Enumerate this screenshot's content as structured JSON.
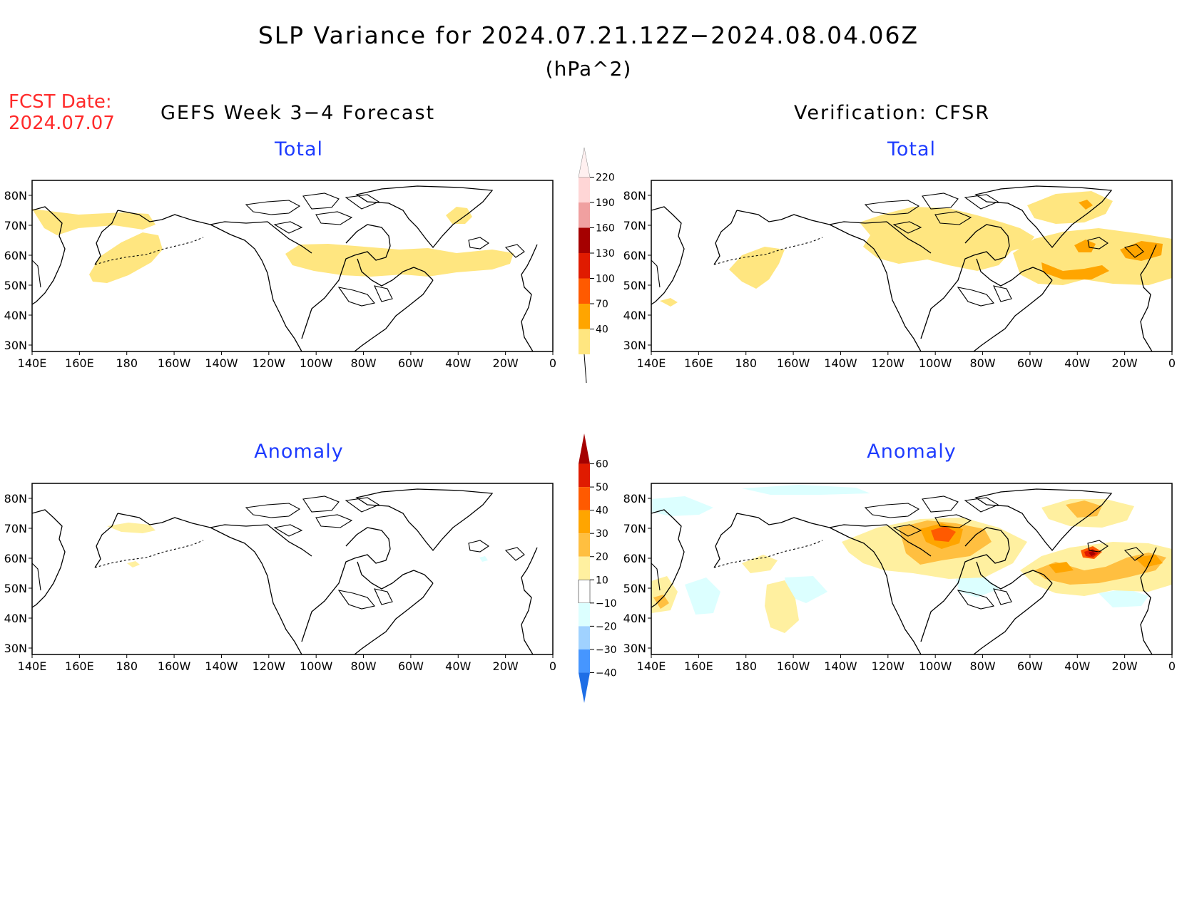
{
  "title": "SLP Variance for 2024.07.21.12Z−2024.08.04.06Z",
  "units": "(hPa^2)",
  "fcst_date_label": "FCST Date:",
  "fcst_date_value": "2024.07.07",
  "left_column_title": "GEFS Week 3−4 Forecast",
  "right_column_title": "Verification: CFSR",
  "panels": {
    "forecast_total": {
      "subtitle": "Total"
    },
    "verification_total": {
      "subtitle": "Total"
    },
    "forecast_anomaly": {
      "subtitle": "Anomaly"
    },
    "verification_anomaly": {
      "subtitle": "Anomaly"
    }
  },
  "axes": {
    "lon_labels": [
      "140E",
      "160E",
      "180",
      "160W",
      "140W",
      "120W",
      "100W",
      "80W",
      "60W",
      "40W",
      "20W",
      "0"
    ],
    "lat_labels": [
      "80N",
      "70N",
      "60N",
      "50N",
      "40N",
      "30N"
    ]
  },
  "total_colorbar": {
    "labels": [
      "40",
      "70",
      "100",
      "130",
      "160",
      "190",
      "220"
    ],
    "colors": [
      "#ffe680",
      "#ffa500",
      "#ff5a00",
      "#e01b00",
      "#a50000",
      "#f0a0a0",
      "#ffd6d6",
      "#fff0f0"
    ]
  },
  "anomaly_colorbar": {
    "labels": [
      "60",
      "50",
      "40",
      "30",
      "20",
      "10",
      "−10",
      "−20",
      "−30",
      "−40"
    ],
    "colors": [
      "#a50000",
      "#e01b00",
      "#ff5a00",
      "#ffa500",
      "#ffbf40",
      "#fff0a0",
      "#ffffff",
      "#dcffff",
      "#a0d2ff",
      "#4696ff",
      "#1e6ee6"
    ]
  },
  "fill_colors": {
    "c40": "#ffe680",
    "c70": "#ffa500",
    "c100": "#ff5a00",
    "c130": "#e01b00",
    "a10": "#fff0a0",
    "a20": "#ffbf40",
    "a30": "#ffa500",
    "a40": "#ff5a00",
    "a50": "#e01b00",
    "a60": "#a50000",
    "an10": "#dcffff"
  }
}
